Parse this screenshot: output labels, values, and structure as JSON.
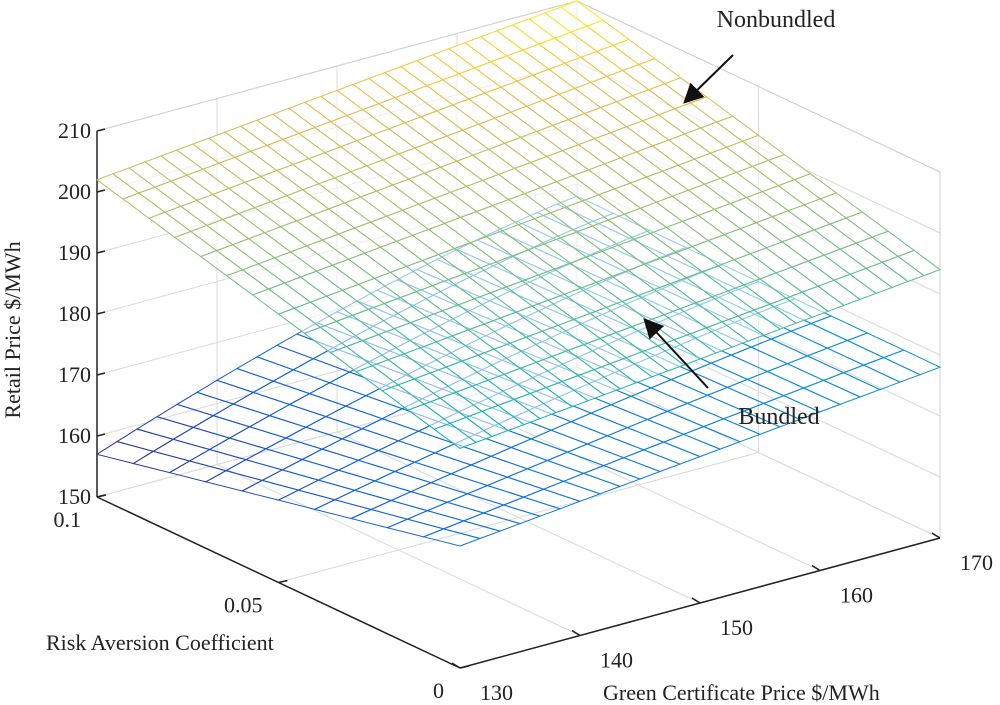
{
  "chart_data": {
    "type": "surface3d",
    "xlabel": "Green Certificate Price $/MWh",
    "ylabel": "Risk Aversion Coefficient",
    "zlabel": "Retail Price $/MWh",
    "xlim": [
      130,
      170
    ],
    "ylim": [
      0,
      0.1
    ],
    "zlim": [
      150,
      210
    ],
    "x_ticks": [
      130,
      140,
      150,
      160,
      170
    ],
    "y_ticks": [
      0,
      0.05,
      0.1
    ],
    "y_tick_labels": [
      "0",
      "0.05",
      "0.1"
    ],
    "z_ticks": [
      150,
      160,
      170,
      180,
      190,
      200,
      210
    ],
    "grid": true,
    "colormap": "parula",
    "series": [
      {
        "name": "Nonbundled",
        "x": [
          130,
          170
        ],
        "y": [
          0,
          0.1
        ],
        "z_corners": {
          "x130_y0": 186,
          "x170_y0": 194,
          "x130_y0.1": 202,
          "x170_y0.1": 210
        }
      },
      {
        "name": "Bundled",
        "x": [
          130,
          170
        ],
        "y": [
          0,
          0.1
        ],
        "z_corners": {
          "x130_y0": 170,
          "x170_y0": 178,
          "x130_y0.1": 157,
          "x170_y0.1": 178
        }
      }
    ],
    "annotations": [
      {
        "label": "Nonbundled",
        "points_to": "Nonbundled"
      },
      {
        "label": "Bundled",
        "points_to": "Bundled"
      }
    ]
  }
}
